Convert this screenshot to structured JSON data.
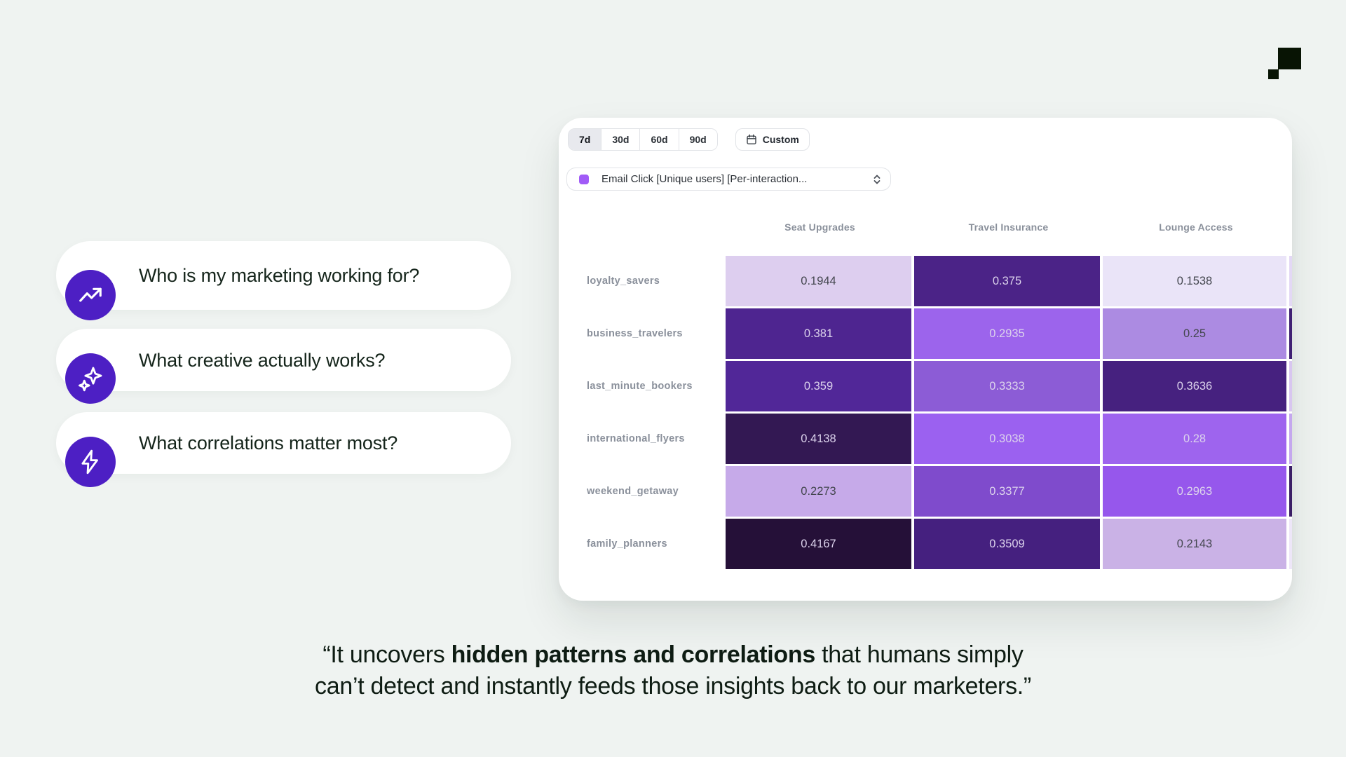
{
  "logo": {
    "color": "#081404"
  },
  "questions": [
    {
      "icon": "trending-up",
      "text": "Who is my marketing working for?"
    },
    {
      "icon": "sparkles",
      "text": "What creative actually works?"
    },
    {
      "icon": "lightning-bolt",
      "text": "What correlations matter most?"
    }
  ],
  "card": {
    "time_ranges": [
      {
        "label": "7d",
        "selected": true
      },
      {
        "label": "30d",
        "selected": false
      },
      {
        "label": "60d",
        "selected": false
      },
      {
        "label": "90d",
        "selected": false
      }
    ],
    "custom_button": {
      "label": "Custom",
      "icon": "calendar-icon"
    },
    "metric_select": {
      "value": "Email Click [Unique users] [Per-interaction...",
      "swatch_color": "#A15BF7",
      "icon": "chevron-up-down-icon"
    }
  },
  "chart_data": {
    "type": "heatmap",
    "title": "",
    "columns": [
      "Seat Upgrades",
      "Travel Insurance",
      "Lounge Access"
    ],
    "rows": [
      "loyalty_savers",
      "business_travelers",
      "last_minute_bookers",
      "international_flyers",
      "weekend_getaway",
      "family_planners"
    ],
    "values": [
      [
        0.1944,
        0.375,
        0.1538
      ],
      [
        0.381,
        0.2935,
        0.25
      ],
      [
        0.359,
        0.3333,
        0.3636
      ],
      [
        0.4138,
        0.3038,
        0.28
      ],
      [
        0.2273,
        0.3377,
        0.2963
      ],
      [
        0.4167,
        0.3509,
        0.2143
      ]
    ],
    "cell_colors": [
      [
        "#DDCEEF",
        "#4B2387",
        "#EAE4F8"
      ],
      [
        "#4E2590",
        "#9C64EC",
        "#AC8BE2"
      ],
      [
        "#512798",
        "#8C5CD6",
        "#46217F"
      ],
      [
        "#331853",
        "#9B61F0",
        "#9E64EE"
      ],
      [
        "#C6AAE9",
        "#7F4BCC",
        "#9657EC"
      ],
      [
        "#251038",
        "#45207F",
        "#CAB2E6"
      ]
    ],
    "overflow_column_colors": [
      "#E3D8F5",
      "#3F1F73",
      "#D8C6F0",
      "#C4A7EE",
      "#3A1D66",
      "#EDE6F8"
    ],
    "value_text_dark": "#43464E",
    "value_text_light": "#DCD3EC",
    "legend_position": "none",
    "grid": false
  },
  "quote": {
    "line1_pre": "“It uncovers ",
    "line1_bold": "hidden patterns and correlations",
    "line1_post": " that humans simply",
    "line2": "can’t detect and instantly feeds those insights back to our marketers.”"
  }
}
